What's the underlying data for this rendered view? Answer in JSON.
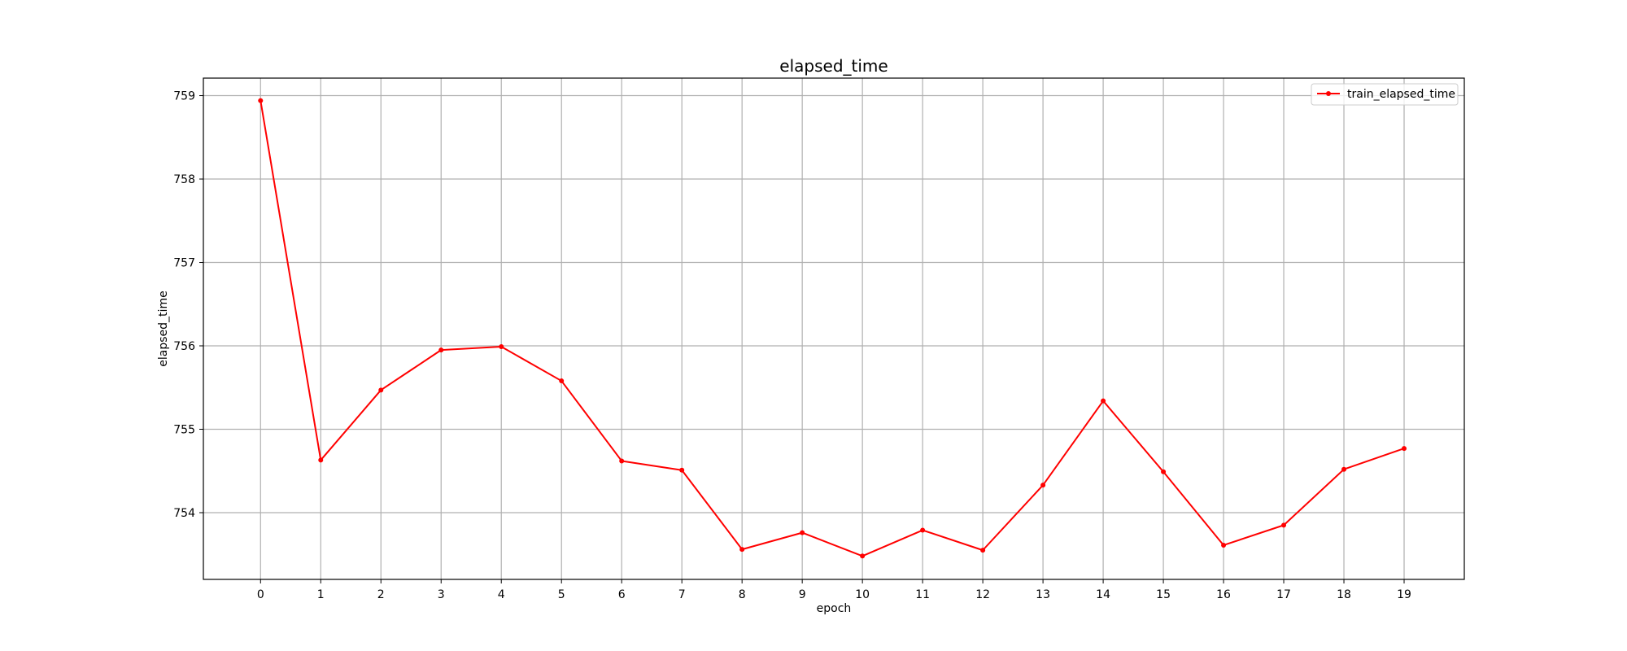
{
  "chart_data": {
    "type": "line",
    "title": "elapsed_time",
    "xlabel": "epoch",
    "ylabel": "elapsed_time",
    "x": [
      0,
      1,
      2,
      3,
      4,
      5,
      6,
      7,
      8,
      9,
      10,
      11,
      12,
      13,
      14,
      15,
      16,
      17,
      18,
      19
    ],
    "xticks": [
      "0",
      "1",
      "2",
      "3",
      "4",
      "5",
      "6",
      "7",
      "8",
      "9",
      "10",
      "11",
      "12",
      "13",
      "14",
      "15",
      "16",
      "17",
      "18",
      "19"
    ],
    "yticks": [
      754,
      755,
      756,
      757,
      758,
      759
    ],
    "xlim": [
      -0.95,
      20.0
    ],
    "ylim": [
      753.2,
      759.21
    ],
    "grid": true,
    "legend": "top-right",
    "series": [
      {
        "name": "train_elapsed_time",
        "color": "#ff0000",
        "marker": "dot",
        "values": [
          758.94,
          754.63,
          755.47,
          755.95,
          755.99,
          755.58,
          754.62,
          754.51,
          753.56,
          753.76,
          753.48,
          753.79,
          753.55,
          754.33,
          755.34,
          754.49,
          753.61,
          753.85,
          754.52,
          754.77
        ]
      }
    ]
  }
}
